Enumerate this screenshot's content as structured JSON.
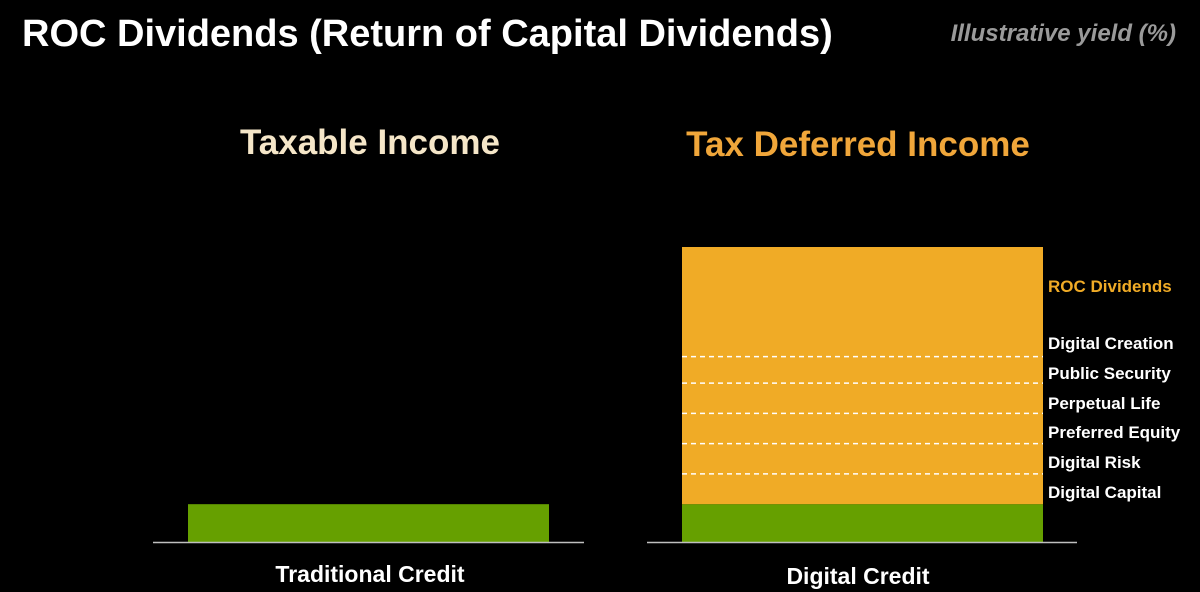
{
  "header": {
    "title": "ROC Dividends (Return of Capital Dividends)",
    "subtitle": "Illustrative yield (%)"
  },
  "colors": {
    "background": "#000000",
    "green": "#66a000",
    "orange": "#f0ab26",
    "left_heading": "#f5e6c8",
    "right_heading": "#f0a63a",
    "white": "#ffffff",
    "axis": "#bfbfbf"
  },
  "chart_data": {
    "type": "bar",
    "stacked": true,
    "categories": [
      "Traditional Credit",
      "Digital Credit"
    ],
    "panel_titles": [
      "Taxable Income",
      "Tax Deferred Income"
    ],
    "series": [
      {
        "values": [
          1.0,
          1.0
        ],
        "color": "#66a000"
      },
      {
        "values": [
          0,
          6.8
        ],
        "color": "#f0ab26"
      }
    ],
    "segment_labels": {
      "bar": "Digital Credit",
      "labels": [
        "ROC Dividends",
        "Digital Creation",
        "Public Security",
        "Perpetual Life",
        "Preferred Equity",
        "Digital Risk",
        "Digital Capital"
      ],
      "highlighted": "ROC Dividends",
      "divider_levels": [
        1.8,
        2.6,
        3.4,
        4.2,
        4.9
      ]
    },
    "ylim": [
      0,
      7.8
    ],
    "xlabel": "",
    "ylabel": "",
    "grid": false,
    "legend": "none"
  }
}
